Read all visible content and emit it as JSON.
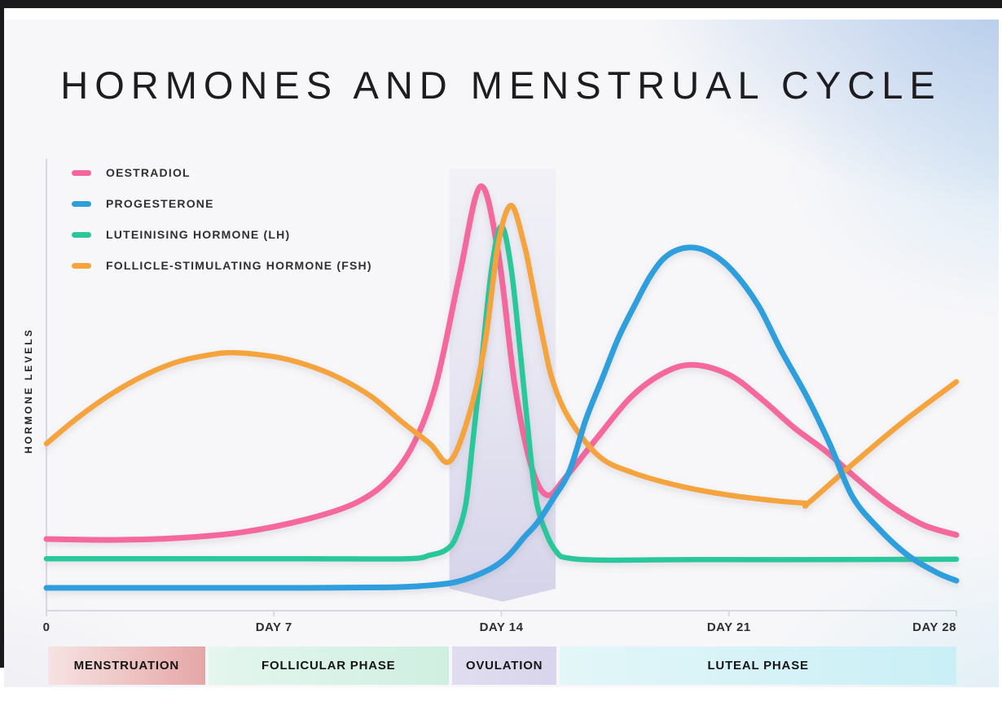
{
  "title": "HORMONES AND MENSTRUAL CYCLE",
  "y_axis_label": "HORMONE LEVELS",
  "legend": [
    {
      "label": "OESTRADIOL",
      "color": "#f4679d"
    },
    {
      "label": "PROGESTERONE",
      "color": "#2f9fdc"
    },
    {
      "label": "LUTEINISING HORMONE (LH)",
      "color": "#2bc79b"
    },
    {
      "label": "FOLLICLE-STIMULATING HORMONE (FSH)",
      "color": "#f5a33c"
    }
  ],
  "phases": [
    {
      "label": "MENSTRUATION",
      "day_start": 0.05,
      "day_end": 4.88,
      "color_left": "#f6e3e3",
      "color_right": "#e6a6a6"
    },
    {
      "label": "FOLLICULAR PHASE",
      "day_start": 4.98,
      "day_end": 12.38,
      "color_left": "#e4f6ee",
      "color_right": "#cfefe1"
    },
    {
      "label": "OVULATION",
      "day_start": 12.48,
      "day_end": 15.7,
      "color_left": "#e0ddf0",
      "color_right": "#d8d5ec"
    },
    {
      "label": "LUTEAL PHASE",
      "day_start": 15.8,
      "day_end": 28.0,
      "color_left": "#e3f6f8",
      "color_right": "#c9eff6"
    }
  ],
  "chart_data": {
    "type": "line",
    "title": "HORMONES AND MENSTRUAL CYCLE",
    "x_unit": "cycle day",
    "x_range": [
      0,
      28
    ],
    "y_range": [
      0,
      100
    ],
    "ylabel": "HORMONE LEVELS",
    "grid": false,
    "legend_position": "top-left",
    "x_ticks": [
      {
        "label": "0",
        "day": 0,
        "align": "center"
      },
      {
        "label": "DAY 7",
        "day": 7,
        "align": "center"
      },
      {
        "label": "DAY 14",
        "day": 14,
        "align": "center"
      },
      {
        "label": "DAY 21",
        "day": 21,
        "align": "center"
      },
      {
        "label": "DAY 28",
        "day": 28,
        "align": "end"
      }
    ],
    "highlight_band": {
      "label": "OVULATION",
      "day_start": 12.4,
      "day_end": 15.67,
      "color": "#d8d5ec"
    },
    "series": [
      {
        "name": "OESTRADIOL",
        "color": "#f4679d",
        "stroke_width": 7,
        "points": [
          [
            0,
            16
          ],
          [
            2,
            15.8
          ],
          [
            4,
            16.2
          ],
          [
            6,
            17.5
          ],
          [
            8,
            20.4
          ],
          [
            9.5,
            24
          ],
          [
            10.5,
            29.1
          ],
          [
            11.3,
            37.3
          ],
          [
            12,
            50.9
          ],
          [
            12.7,
            74.5
          ],
          [
            13.35,
            94.7
          ],
          [
            13.9,
            80
          ],
          [
            14.4,
            50.9
          ],
          [
            14.9,
            32.7
          ],
          [
            15.4,
            25.8
          ],
          [
            16,
            30
          ],
          [
            17,
            39.1
          ],
          [
            18,
            47.8
          ],
          [
            19,
            53.1
          ],
          [
            19.9,
            54.9
          ],
          [
            21,
            52.7
          ],
          [
            22,
            47.3
          ],
          [
            23,
            40.9
          ],
          [
            24,
            35.5
          ],
          [
            25,
            29.1
          ],
          [
            26,
            23.3
          ],
          [
            27,
            19.1
          ],
          [
            28,
            16.9
          ]
        ]
      },
      {
        "name": "LUTEINISING HORMONE (LH)",
        "color": "#2bc79b",
        "stroke_width": 6.5,
        "points": [
          [
            0,
            11.6
          ],
          [
            4,
            11.6
          ],
          [
            8,
            11.6
          ],
          [
            11.1,
            11.6
          ],
          [
            11.8,
            12.4
          ],
          [
            12.3,
            13.6
          ],
          [
            12.6,
            16.4
          ],
          [
            12.9,
            23.6
          ],
          [
            13.1,
            36.4
          ],
          [
            13.4,
            56.4
          ],
          [
            13.7,
            76.4
          ],
          [
            14,
            85.8
          ],
          [
            14.3,
            76.4
          ],
          [
            14.6,
            56.4
          ],
          [
            14.9,
            34.5
          ],
          [
            15.1,
            23.6
          ],
          [
            15.4,
            16.9
          ],
          [
            15.7,
            13.1
          ],
          [
            16,
            11.8
          ],
          [
            17.1,
            11.3
          ],
          [
            20,
            11.4
          ],
          [
            24,
            11.4
          ],
          [
            28,
            11.5
          ]
        ]
      },
      {
        "name": "FOLLICLE-STIMULATING HORMONE (FSH)",
        "color": "#f5a33c",
        "stroke_width": 6.5,
        "points": [
          [
            0,
            37.3
          ],
          [
            1,
            43.3
          ],
          [
            2,
            48.4
          ],
          [
            3,
            52.5
          ],
          [
            4,
            55.5
          ],
          [
            5,
            57.1
          ],
          [
            5.8,
            57.6
          ],
          [
            7,
            56.7
          ],
          [
            8,
            54.9
          ],
          [
            9,
            52
          ],
          [
            10,
            47.8
          ],
          [
            11,
            41.8
          ],
          [
            11.8,
            37.3
          ],
          [
            12.4,
            33.3
          ],
          [
            13,
            43.6
          ],
          [
            13.5,
            60
          ],
          [
            13.9,
            81.8
          ],
          [
            14.3,
            90.5
          ],
          [
            14.7,
            81.8
          ],
          [
            14.9,
            74.9
          ],
          [
            15.3,
            60
          ],
          [
            15.6,
            50.9
          ],
          [
            16.1,
            42.7
          ],
          [
            17,
            34.5
          ],
          [
            18,
            30.9
          ],
          [
            19.5,
            27.8
          ],
          [
            21,
            25.8
          ],
          [
            22.5,
            24.5
          ],
          [
            23.35,
            24
          ],
          [
            23.45,
            24.1
          ],
          [
            24.9,
            33.3
          ],
          [
            26.4,
            42.4
          ],
          [
            28,
            51.1
          ]
        ]
      },
      {
        "name": "PROGESTERONE",
        "color": "#2f9fdc",
        "stroke_width": 7,
        "points": [
          [
            0,
            5.1
          ],
          [
            4,
            5.1
          ],
          [
            8,
            5.1
          ],
          [
            10.5,
            5.2
          ],
          [
            11.5,
            5.5
          ],
          [
            12.6,
            6.4
          ],
          [
            13.6,
            9.1
          ],
          [
            14.2,
            12.2
          ],
          [
            14.7,
            16.4
          ],
          [
            15.1,
            19.6
          ],
          [
            15.6,
            25.1
          ],
          [
            16.1,
            31.3
          ],
          [
            16.6,
            42.7
          ],
          [
            17.1,
            51.8
          ],
          [
            17.6,
            60.9
          ],
          [
            18.1,
            68.2
          ],
          [
            18.6,
            74.9
          ],
          [
            19.1,
            79.3
          ],
          [
            19.75,
            81.1
          ],
          [
            20.4,
            80
          ],
          [
            21.1,
            76
          ],
          [
            21.9,
            68.2
          ],
          [
            22.6,
            58.2
          ],
          [
            23.4,
            47.8
          ],
          [
            24.1,
            37.3
          ],
          [
            24.8,
            25.5
          ],
          [
            25.6,
            18.4
          ],
          [
            26.5,
            12.4
          ],
          [
            27.4,
            8.5
          ],
          [
            28,
            6.7
          ]
        ]
      }
    ]
  }
}
